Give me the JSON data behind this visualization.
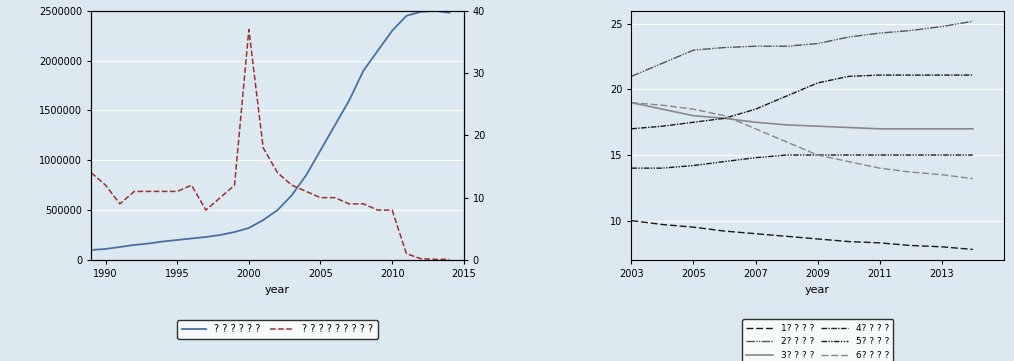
{
  "left_chart": {
    "years_solid": [
      1989,
      1990,
      1991,
      1992,
      1993,
      1994,
      1995,
      1996,
      1997,
      1998,
      1999,
      2000,
      2001,
      2002,
      2003,
      2004,
      2005,
      2006,
      2007,
      2008,
      2009,
      2010,
      2011,
      2012,
      2013,
      2014
    ],
    "values_solid": [
      100000,
      110000,
      130000,
      150000,
      165000,
      185000,
      200000,
      215000,
      230000,
      250000,
      280000,
      320000,
      400000,
      500000,
      650000,
      850000,
      1100000,
      1350000,
      1600000,
      1900000,
      2100000,
      2300000,
      2450000,
      2490000,
      2500000,
      2480000
    ],
    "years_dashed": [
      1989,
      1990,
      1991,
      1992,
      1993,
      1994,
      1995,
      1996,
      1997,
      1998,
      1999,
      2000,
      2001,
      2002,
      2003,
      2004,
      2005,
      2006,
      2007,
      2008,
      2009,
      2010,
      2011,
      2012,
      2013,
      2014
    ],
    "values_dashed": [
      14,
      12,
      9,
      11,
      11,
      11,
      11,
      12,
      8,
      10,
      12,
      37,
      18,
      14,
      12,
      11,
      10,
      10,
      9,
      9,
      8,
      8,
      1,
      0.2,
      0.1,
      0.1
    ],
    "solid_color": "#4a6fa5",
    "dashed_color": "#9c3030",
    "xlabel": "year",
    "xlim": [
      1989,
      2015
    ],
    "ylim_left": [
      0,
      2500000
    ],
    "ylim_right": [
      0,
      40
    ],
    "yticks_left": [
      0,
      500000,
      1000000,
      1500000,
      2000000,
      2500000
    ],
    "ytick_labels_left": [
      "0",
      "500000",
      "1000000",
      "1500000",
      "2000000",
      "2500000"
    ],
    "yticks_right": [
      0,
      10,
      20,
      30,
      40
    ],
    "xticks": [
      1990,
      1995,
      2000,
      2005,
      2010,
      2015
    ],
    "legend_solid": "? ? ? ? ? ?",
    "legend_dashed": "? ? ? ? ? ? ? ? ?",
    "bg_color": "#dce9f0"
  },
  "right_chart": {
    "years": [
      2003,
      2004,
      2005,
      2006,
      2007,
      2008,
      2009,
      2010,
      2011,
      2012,
      2013,
      2014
    ],
    "line1": [
      10.0,
      9.7,
      9.5,
      9.2,
      9.0,
      8.8,
      8.6,
      8.4,
      8.3,
      8.1,
      8.0,
      7.8
    ],
    "line2": [
      21.0,
      22.0,
      23.0,
      23.2,
      23.3,
      23.3,
      23.5,
      24.0,
      24.3,
      24.5,
      24.8,
      25.2
    ],
    "line3": [
      19.0,
      18.5,
      18.0,
      17.8,
      17.5,
      17.3,
      17.2,
      17.1,
      17.0,
      17.0,
      17.0,
      17.0
    ],
    "line4": [
      17.0,
      17.2,
      17.5,
      17.8,
      18.5,
      19.5,
      20.5,
      21.0,
      21.1,
      21.1,
      21.1,
      21.1
    ],
    "line5": [
      14.0,
      14.0,
      14.2,
      14.5,
      14.8,
      15.0,
      15.0,
      15.0,
      15.0,
      15.0,
      15.0,
      15.0
    ],
    "line6": [
      19.0,
      18.8,
      18.5,
      18.0,
      17.0,
      16.0,
      15.0,
      14.5,
      14.0,
      13.7,
      13.5,
      13.2
    ],
    "xlabel": "year",
    "xlim": [
      2003,
      2015
    ],
    "ylim": [
      7,
      26
    ],
    "yticks": [
      10,
      15,
      20,
      25
    ],
    "xticks": [
      2003,
      2005,
      2007,
      2009,
      2011,
      2013
    ],
    "legend1": "1? ? ? ?",
    "legend2": "2? ? ? ?",
    "legend3": "3? ? ? ?",
    "legend4": "4? ? ? ?",
    "legend5": "5? ? ? ?",
    "legend6": "6? ? ? ?",
    "bg_color": "#dce9f0"
  },
  "fig_bg": "#dce9f0"
}
